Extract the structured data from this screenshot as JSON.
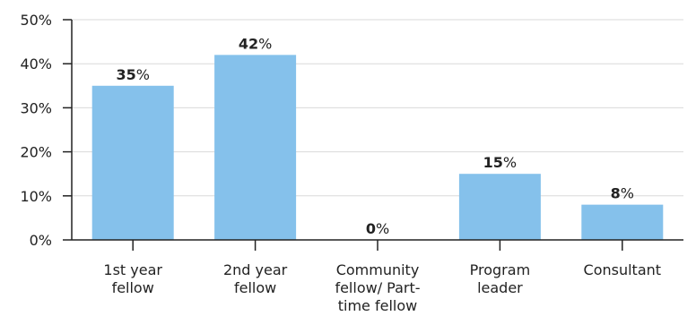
{
  "chart_data": {
    "type": "bar",
    "title": "",
    "xlabel": "",
    "ylabel": "",
    "ylim": [
      0,
      50
    ],
    "y_ticks": [
      0,
      10,
      20,
      30,
      40,
      50
    ],
    "y_tick_suffix": "%",
    "grid": true,
    "categories": [
      [
        "1st year",
        "fellow"
      ],
      [
        "2nd year",
        "fellow"
      ],
      [
        "Community",
        "fellow/ Part-",
        "time fellow"
      ],
      [
        "Program",
        "leader"
      ],
      [
        "Consultant"
      ]
    ],
    "values": [
      35,
      42,
      0,
      15,
      8
    ],
    "value_suffix": "%",
    "colors": {
      "bar": "#85c1eb",
      "grid": "#d9d9d9",
      "axis": "#222222",
      "text": "#222222"
    }
  }
}
